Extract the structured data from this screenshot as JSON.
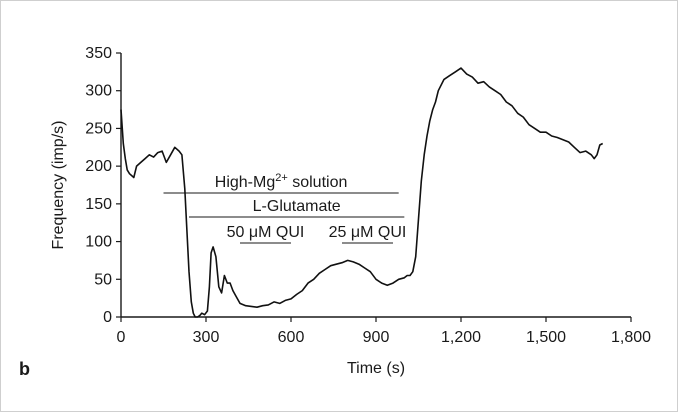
{
  "chart_data": {
    "type": "line",
    "panel_label": "b",
    "xlabel": "Time (s)",
    "ylabel": "Frequency (imp/s)",
    "xlim": [
      0,
      1800
    ],
    "ylim": [
      0,
      350
    ],
    "x_ticks": [
      0,
      300,
      600,
      900,
      1200,
      1500,
      1800
    ],
    "x_tick_labels": [
      "0",
      "300",
      "600",
      "900",
      "1,200",
      "1,500",
      "1,800"
    ],
    "y_ticks": [
      0,
      50,
      100,
      150,
      200,
      250,
      300,
      350
    ],
    "y_tick_labels": [
      "0",
      "50",
      "100",
      "150",
      "200",
      "250",
      "300",
      "350"
    ],
    "grid": false,
    "series": [
      {
        "x": [
          0,
          8,
          15,
          22,
          30,
          45,
          55,
          70,
          85,
          100,
          115,
          130,
          145,
          160,
          175,
          190,
          205,
          215,
          225,
          232,
          240,
          248,
          255,
          262,
          270,
          278,
          285,
          295,
          305,
          312,
          318,
          325,
          335,
          345,
          355,
          365,
          375,
          385,
          395,
          405,
          420,
          440,
          460,
          480,
          500,
          520,
          540,
          560,
          580,
          600,
          620,
          640,
          660,
          680,
          700,
          720,
          740,
          760,
          780,
          800,
          820,
          840,
          860,
          880,
          900,
          920,
          940,
          960,
          980,
          1000,
          1010,
          1020,
          1030,
          1040,
          1050,
          1060,
          1070,
          1080,
          1090,
          1100,
          1110,
          1120,
          1140,
          1160,
          1180,
          1200,
          1220,
          1240,
          1260,
          1280,
          1300,
          1320,
          1340,
          1360,
          1380,
          1400,
          1420,
          1440,
          1460,
          1480,
          1500,
          1520,
          1540,
          1560,
          1580,
          1600,
          1620,
          1640,
          1660,
          1670,
          1680,
          1690,
          1700
        ],
        "y": [
          275,
          230,
          210,
          195,
          190,
          185,
          200,
          205,
          210,
          215,
          212,
          218,
          220,
          205,
          215,
          225,
          220,
          215,
          170,
          120,
          60,
          20,
          5,
          0,
          0,
          2,
          5,
          3,
          8,
          40,
          85,
          93,
          80,
          40,
          32,
          55,
          45,
          45,
          35,
          28,
          18,
          15,
          14,
          13,
          15,
          16,
          20,
          18,
          22,
          24,
          30,
          35,
          45,
          50,
          58,
          63,
          68,
          70,
          72,
          75,
          73,
          70,
          65,
          60,
          50,
          45,
          42,
          45,
          50,
          52,
          55,
          55,
          60,
          80,
          130,
          180,
          215,
          240,
          260,
          275,
          285,
          300,
          315,
          320,
          325,
          330,
          322,
          318,
          310,
          312,
          305,
          300,
          295,
          285,
          280,
          270,
          265,
          255,
          250,
          245,
          245,
          240,
          238,
          235,
          232,
          225,
          218,
          220,
          215,
          210,
          215,
          228,
          230
        ]
      }
    ],
    "annotations": [
      {
        "label_prefix": "High-Mg",
        "label_sup": "2+",
        "label_suffix": " solution",
        "x_start": 150,
        "x_end": 980
      },
      {
        "label": "L-Glutamate",
        "x_start": 240,
        "x_end": 1000
      },
      {
        "label": "50 μM QUI",
        "x_start": 420,
        "x_end": 600
      },
      {
        "label": "25 μM QUI",
        "x_start": 780,
        "x_end": 960
      }
    ]
  }
}
